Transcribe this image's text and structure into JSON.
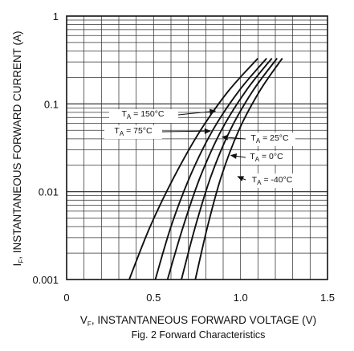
{
  "chart_data": {
    "type": "line",
    "title": "Fig. 2  Forward Characteristics",
    "xlabel_parts": [
      "V",
      "F",
      ", INSTANTANEOUS FORWARD VOLTAGE (V)"
    ],
    "ylabel_parts": [
      "I",
      "F",
      ", INSTANTANEOUS FORWARD CURRENT (A)"
    ],
    "x_scale": "linear",
    "y_scale": "log",
    "xlim": [
      0,
      1.5
    ],
    "ylim": [
      0.001,
      1
    ],
    "x_ticks": [
      {
        "value": 0,
        "label": "0"
      },
      {
        "value": 0.5,
        "label": "0.5"
      },
      {
        "value": 1.0,
        "label": "1.0"
      },
      {
        "value": 1.5,
        "label": "1.5"
      }
    ],
    "y_ticks": [
      {
        "value": 1,
        "label": "1"
      },
      {
        "value": 0.1,
        "label": "0.1"
      },
      {
        "value": 0.01,
        "label": "0.01"
      },
      {
        "value": 0.001,
        "label": "0.001"
      }
    ],
    "grid": true,
    "series": [
      {
        "name": "150°C",
        "label_parts": [
          "T",
          "A",
          " = 150°C"
        ],
        "x": [
          0.36,
          0.48,
          0.62,
          0.77,
          0.93,
          1.1
        ],
        "y": [
          0.001,
          0.004,
          0.015,
          0.05,
          0.14,
          0.33
        ]
      },
      {
        "name": "75°C",
        "label_parts": [
          "T",
          "A",
          " = 75°C"
        ],
        "x": [
          0.51,
          0.6,
          0.71,
          0.84,
          0.99,
          1.15
        ],
        "y": [
          0.001,
          0.004,
          0.015,
          0.05,
          0.14,
          0.33
        ]
      },
      {
        "name": "25°C",
        "label_parts": [
          "T",
          "A",
          " = 25°C"
        ],
        "x": [
          0.58,
          0.67,
          0.77,
          0.89,
          1.03,
          1.18
        ],
        "y": [
          0.001,
          0.004,
          0.015,
          0.05,
          0.14,
          0.33
        ]
      },
      {
        "name": "0°C",
        "label_parts": [
          "T",
          "A",
          " = 0°C"
        ],
        "x": [
          0.66,
          0.74,
          0.83,
          0.94,
          1.07,
          1.21
        ],
        "y": [
          0.001,
          0.004,
          0.015,
          0.05,
          0.14,
          0.33
        ]
      },
      {
        "name": "-40°C",
        "label_parts": [
          "T",
          "A",
          " = -40°C"
        ],
        "x": [
          0.74,
          0.81,
          0.89,
          0.99,
          1.11,
          1.24
        ],
        "y": [
          0.001,
          0.004,
          0.015,
          0.05,
          0.14,
          0.33
        ]
      }
    ],
    "annotations": [
      {
        "series": "150°C",
        "target": [
          0.86,
          0.083
        ]
      },
      {
        "series": "75°C",
        "target": [
          0.83,
          0.049
        ]
      },
      {
        "series": "25°C",
        "target": [
          0.89,
          0.042
        ]
      },
      {
        "series": "0°C",
        "target": [
          0.94,
          0.026
        ]
      },
      {
        "series": "-40°C",
        "target": [
          0.98,
          0.015
        ]
      }
    ],
    "colors": {
      "ink": "#111111",
      "background": "#ffffff"
    }
  }
}
